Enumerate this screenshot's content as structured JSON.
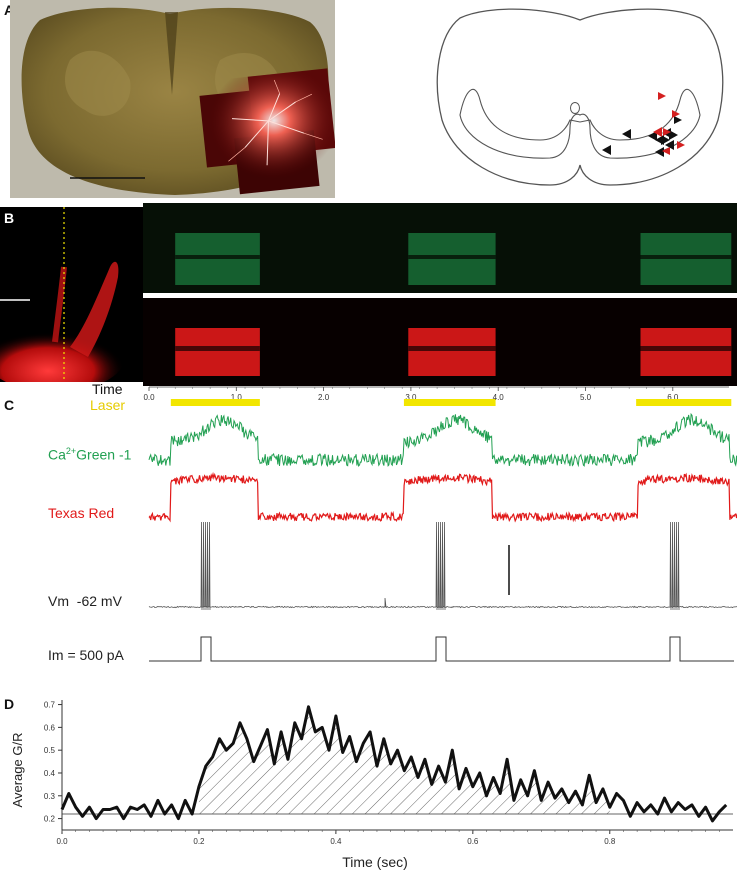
{
  "panels": {
    "a": {
      "letter": "A"
    },
    "b": {
      "letter": "B"
    },
    "c": {
      "letter": "C"
    },
    "d": {
      "letter": "D"
    }
  },
  "panel_b": {
    "time_label": "Time",
    "laser_label": "Laser",
    "time_ticks": [
      "0.0",
      "1.0",
      "2.0",
      "3.0",
      "4.0",
      "5.0",
      "6.0"
    ],
    "colors": {
      "green": "#22a052",
      "red": "#e11a1a",
      "laser": "#f2e600"
    }
  },
  "panel_c": {
    "ca_label_prefix": "Ca",
    "ca_label_sup": "2+",
    "ca_label_suffix": "Green -1",
    "texas_label": "Texas Red",
    "vm_label": "Vm  -62 mV",
    "im_label": "Im = 500 pA"
  },
  "chart_data": {
    "type": "line",
    "title": "",
    "xlabel": "Time (sec)",
    "ylabel": "Average G/R",
    "xlim": [
      0,
      0.98
    ],
    "ylim": [
      0.15,
      0.72
    ],
    "x_ticks": [
      "0.0",
      "0.2",
      "0.4",
      "0.6",
      "0.8"
    ],
    "y_ticks": [
      "0.2",
      "0.3",
      "0.4",
      "0.5",
      "0.6",
      "0.7"
    ],
    "baseline": 0.22,
    "series": [
      {
        "x": [
          0.0,
          0.01,
          0.02,
          0.03,
          0.04,
          0.05,
          0.06,
          0.07,
          0.08,
          0.09,
          0.1,
          0.11,
          0.12,
          0.13,
          0.14,
          0.15,
          0.16,
          0.17,
          0.18,
          0.19,
          0.2,
          0.21,
          0.22,
          0.23,
          0.24,
          0.25,
          0.26,
          0.27,
          0.28,
          0.29,
          0.3,
          0.31,
          0.32,
          0.33,
          0.34,
          0.35,
          0.36,
          0.37,
          0.38,
          0.39,
          0.4,
          0.41,
          0.42,
          0.43,
          0.44,
          0.45,
          0.46,
          0.47,
          0.48,
          0.49,
          0.5,
          0.51,
          0.52,
          0.53,
          0.54,
          0.55,
          0.56,
          0.57,
          0.58,
          0.59,
          0.6,
          0.61,
          0.62,
          0.63,
          0.64,
          0.65,
          0.66,
          0.67,
          0.68,
          0.69,
          0.7,
          0.71,
          0.72,
          0.73,
          0.74,
          0.75,
          0.76,
          0.77,
          0.78,
          0.79,
          0.8,
          0.81,
          0.82,
          0.83,
          0.84,
          0.85,
          0.86,
          0.87,
          0.88,
          0.89,
          0.9,
          0.91,
          0.92,
          0.93,
          0.94,
          0.95,
          0.96,
          0.97
        ],
        "values": [
          0.24,
          0.31,
          0.25,
          0.21,
          0.25,
          0.2,
          0.24,
          0.24,
          0.25,
          0.2,
          0.25,
          0.24,
          0.26,
          0.21,
          0.28,
          0.22,
          0.26,
          0.2,
          0.28,
          0.22,
          0.34,
          0.43,
          0.47,
          0.55,
          0.5,
          0.53,
          0.62,
          0.55,
          0.45,
          0.52,
          0.59,
          0.44,
          0.58,
          0.46,
          0.62,
          0.55,
          0.69,
          0.58,
          0.6,
          0.5,
          0.65,
          0.49,
          0.56,
          0.45,
          0.53,
          0.58,
          0.43,
          0.55,
          0.44,
          0.5,
          0.41,
          0.47,
          0.38,
          0.46,
          0.35,
          0.43,
          0.36,
          0.5,
          0.33,
          0.42,
          0.34,
          0.4,
          0.3,
          0.38,
          0.31,
          0.46,
          0.28,
          0.37,
          0.3,
          0.41,
          0.28,
          0.36,
          0.29,
          0.33,
          0.27,
          0.32,
          0.26,
          0.39,
          0.27,
          0.33,
          0.25,
          0.31,
          0.28,
          0.21,
          0.27,
          0.23,
          0.26,
          0.22,
          0.29,
          0.23,
          0.27,
          0.24,
          0.26,
          0.21,
          0.25,
          0.19,
          0.23,
          0.26
        ]
      }
    ]
  }
}
